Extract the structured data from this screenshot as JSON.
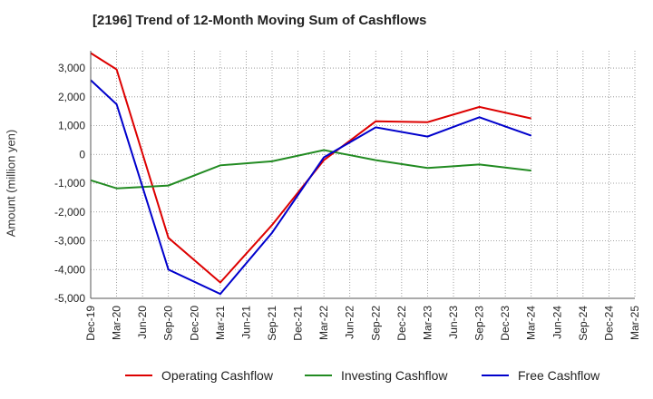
{
  "chart_data": {
    "type": "line",
    "title": "[2196]  Trend of 12-Month Moving Sum of Cashflows",
    "ylabel": "Amount (million yen)",
    "xlabel": "",
    "categories": [
      "Dec-19",
      "Mar-20",
      "Jun-20",
      "Sep-20",
      "Dec-20",
      "Mar-21",
      "Jun-21",
      "Sep-21",
      "Dec-21",
      "Mar-22",
      "Jun-22",
      "Sep-22",
      "Dec-22",
      "Mar-23",
      "Jun-23",
      "Sep-23",
      "Dec-23",
      "Mar-24",
      "Jun-24",
      "Sep-24",
      "Dec-24",
      "Mar-25"
    ],
    "yticks": [
      "3,000",
      "2,000",
      "1,000",
      "0",
      "-1,000",
      "-2,000",
      "-3,000",
      "-4,000",
      "-5,000"
    ],
    "ylim": [
      -5000,
      3600
    ],
    "grid": true,
    "legend_position": "bottom",
    "series": [
      {
        "name": "Operating Cashflow",
        "color": "#dd0000",
        "values": [
          3520,
          2950,
          null,
          -2900,
          null,
          -4450,
          null,
          -2450,
          null,
          -200,
          null,
          1150,
          null,
          1120,
          null,
          1650,
          null,
          1250,
          null,
          null,
          null,
          null
        ]
      },
      {
        "name": "Investing Cashflow",
        "color": "#228b22",
        "values": [
          -900,
          -1180,
          null,
          -1080,
          null,
          -380,
          null,
          -240,
          null,
          150,
          null,
          -200,
          null,
          -470,
          null,
          -350,
          null,
          -560,
          null,
          null,
          null,
          null
        ]
      },
      {
        "name": "Free Cashflow",
        "color": "#0000cc",
        "values": [
          2580,
          1740,
          null,
          -4000,
          null,
          -4850,
          null,
          -2720,
          null,
          -100,
          null,
          940,
          null,
          620,
          null,
          1290,
          null,
          650,
          null,
          null,
          null,
          null
        ]
      }
    ]
  }
}
